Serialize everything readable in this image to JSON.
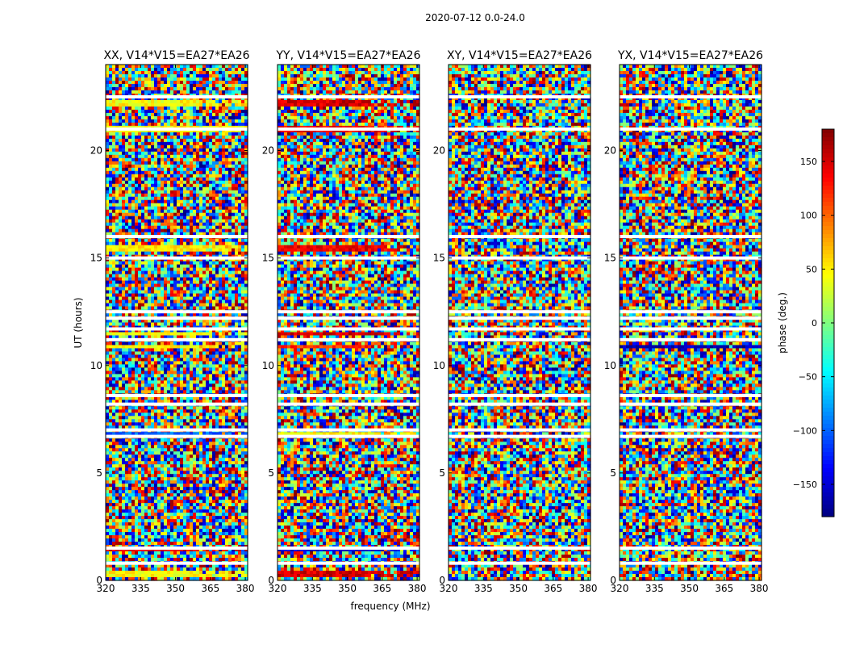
{
  "figure_title": "2020-07-12 0.0-24.0",
  "chart_data": {
    "type": "heatmap",
    "x_label": "frequency (MHz)",
    "y_label": "UT (hours)",
    "x_range": [
      320,
      381
    ],
    "x_ticks": [
      320,
      335,
      350,
      365,
      380
    ],
    "y_range": [
      0,
      24
    ],
    "y_ticks": [
      0,
      5,
      10,
      15,
      20
    ],
    "panels": [
      {
        "title": "XX, V14*V15=EA27*EA26"
      },
      {
        "title": "YY, V14*V15=EA27*EA26"
      },
      {
        "title": "XY, V14*V15=EA27*EA26"
      },
      {
        "title": "YX, V14*V15=EA27*EA26"
      }
    ],
    "colorbar": {
      "label": "phase (deg.)",
      "range": [
        -180,
        180
      ],
      "ticks": [
        -150,
        -100,
        -50,
        0,
        50,
        100,
        150
      ],
      "tick_labels": [
        "−150",
        "−100",
        "−50",
        "0",
        "50",
        "100",
        "150"
      ],
      "colormap": "jet"
    },
    "coherent_bands": [
      {
        "panel": "XX",
        "y_range": [
          22.0,
          22.4
        ],
        "phase": 45
      },
      {
        "panel": "XX",
        "y_range": [
          20.8,
          21.2
        ],
        "phase": 45
      },
      {
        "panel": "XX",
        "y_range": [
          15.3,
          15.6
        ],
        "phase": 50
      },
      {
        "panel": "XX",
        "y_range": [
          11.4,
          11.6
        ],
        "phase": 45
      },
      {
        "panel": "XX",
        "y_range": [
          10.8,
          11.0
        ],
        "phase": 45
      },
      {
        "panel": "XX",
        "y_range": [
          6.8,
          6.9
        ],
        "phase": -100
      },
      {
        "panel": "XX",
        "y_range": [
          1.3,
          1.5
        ],
        "phase": 150
      },
      {
        "panel": "XX",
        "y_range": [
          0.1,
          0.4
        ],
        "phase": 45
      },
      {
        "panel": "YY",
        "y_range": [
          22.0,
          22.4
        ],
        "phase": 150
      },
      {
        "panel": "YY",
        "y_range": [
          20.8,
          21.2
        ],
        "phase": 140
      },
      {
        "panel": "YY",
        "y_range": [
          15.3,
          15.6
        ],
        "phase": 140
      },
      {
        "panel": "YY",
        "y_range": [
          11.4,
          11.6
        ],
        "phase": 150
      },
      {
        "panel": "YY",
        "y_range": [
          10.8,
          11.0
        ],
        "phase": 120
      },
      {
        "panel": "YY",
        "y_range": [
          6.8,
          6.9
        ],
        "phase": 45
      },
      {
        "panel": "YY",
        "y_range": [
          1.3,
          1.5
        ],
        "phase": -150
      },
      {
        "panel": "YY",
        "y_range": [
          0.1,
          0.4
        ],
        "phase": 150
      },
      {
        "panel": "YX",
        "y_range": [
          10.8,
          11.0
        ],
        "phase": -160
      }
    ],
    "flagged_gaps": [
      22.5,
      21.0,
      16.0,
      15.0,
      12.5,
      12.2,
      11.7,
      11.2,
      8.6,
      8.2,
      7.0,
      6.7,
      1.5,
      0.8
    ],
    "grid": false,
    "legend": "colorbar-right"
  }
}
